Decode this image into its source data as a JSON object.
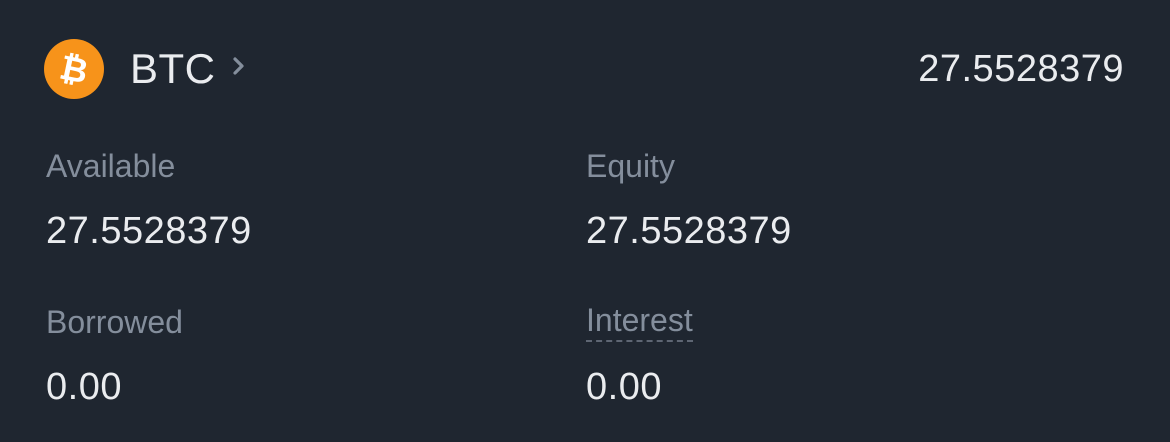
{
  "asset": {
    "symbol": "BTC",
    "icon": "bitcoin-icon",
    "icon_color": "#f7931a",
    "total": "27.5528379"
  },
  "fields": {
    "available": {
      "label": "Available",
      "value": "27.5528379"
    },
    "equity": {
      "label": "Equity",
      "value": "27.5528379"
    },
    "borrowed": {
      "label": "Borrowed",
      "value": "0.00"
    },
    "interest": {
      "label": "Interest",
      "value": "0.00"
    }
  },
  "colors": {
    "background": "#1f2630",
    "primary_text": "#eaecef",
    "secondary_text": "#848e9c"
  }
}
